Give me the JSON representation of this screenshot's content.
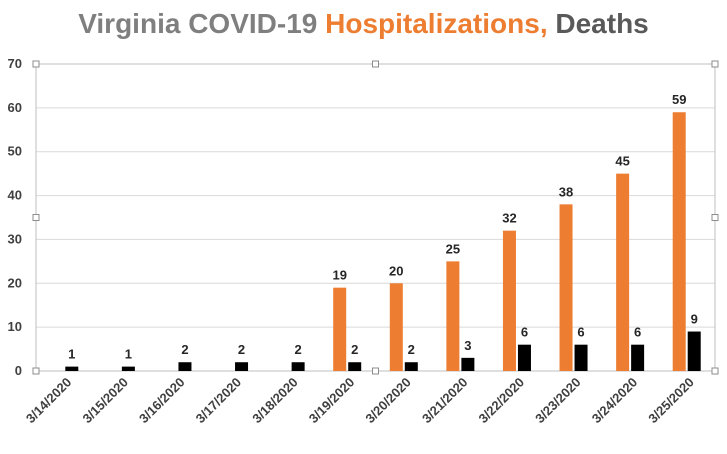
{
  "chart_data": {
    "type": "bar",
    "title_parts": {
      "part1": "Virginia COVID-19",
      "part2": "Hospitalizations,",
      "part3": "Deaths"
    },
    "categories": [
      "3/14/2020",
      "3/15/2020",
      "3/16/2020",
      "3/17/2020",
      "3/18/2020",
      "3/19/2020",
      "3/20/2020",
      "3/21/2020",
      "3/22/2020",
      "3/23/2020",
      "3/24/2020",
      "3/25/2020"
    ],
    "series": [
      {
        "name": "Hospitalizations",
        "color": "#ed7d31",
        "values": [
          null,
          null,
          null,
          null,
          null,
          19,
          20,
          25,
          32,
          38,
          45,
          59
        ]
      },
      {
        "name": "Deaths",
        "color": "#000000",
        "values": [
          1,
          1,
          2,
          2,
          2,
          2,
          2,
          3,
          6,
          6,
          6,
          9
        ]
      }
    ],
    "ylim": [
      0,
      70
    ],
    "yticks": [
      0,
      10,
      20,
      30,
      40,
      50,
      60,
      70
    ],
    "grid": true,
    "legend": "none",
    "data_labels": true
  }
}
